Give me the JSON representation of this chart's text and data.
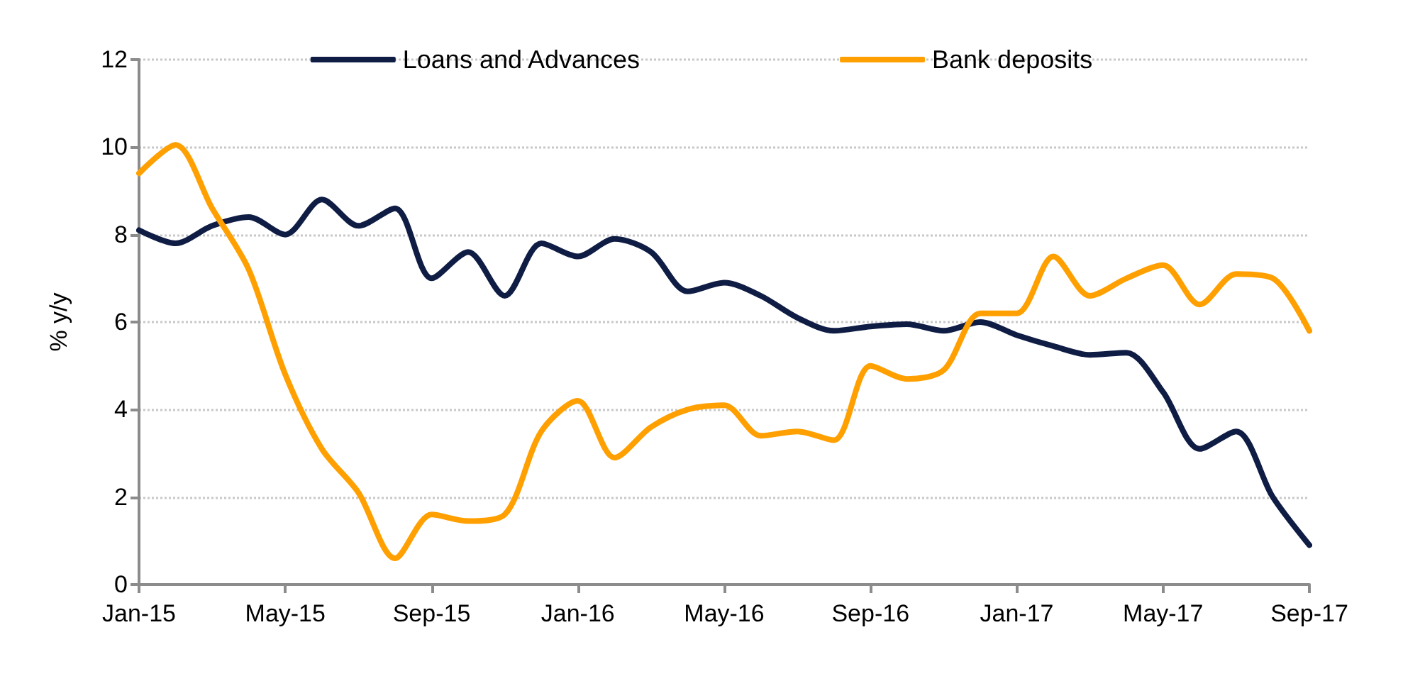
{
  "chart_data": {
    "type": "line",
    "ylabel": "% y/y",
    "categories": [
      "Jan-15",
      null,
      null,
      null,
      "May-15",
      null,
      null,
      null,
      "Sep-15",
      null,
      null,
      null,
      "Jan-16",
      null,
      null,
      null,
      "May-16",
      null,
      null,
      null,
      "Sep-16",
      null,
      null,
      null,
      "Jan-17",
      null,
      null,
      null,
      "May-17",
      null,
      null,
      null,
      "Sep-17"
    ],
    "series": [
      {
        "name": "Loans and Advances",
        "color": "#0f1d45",
        "values": [
          8.1,
          7.8,
          8.2,
          8.4,
          8.0,
          8.8,
          8.2,
          8.6,
          7.0,
          7.6,
          6.6,
          7.8,
          7.5,
          7.9,
          7.6,
          6.7,
          6.9,
          6.6,
          6.1,
          5.8,
          5.9,
          5.95,
          5.8,
          6.0,
          5.7,
          5.45,
          5.25,
          5.3,
          4.4,
          3.1,
          3.5,
          2.0,
          0.9
        ]
      },
      {
        "name": "Bank deposits",
        "color": "#ffa000",
        "values": [
          9.4,
          10.05,
          8.6,
          7.2,
          4.8,
          3.1,
          2.1,
          0.6,
          1.6,
          1.45,
          1.6,
          3.5,
          4.2,
          2.9,
          3.6,
          4.0,
          4.1,
          3.4,
          3.5,
          3.3,
          5.0,
          4.7,
          4.9,
          6.2,
          6.2,
          7.5,
          6.6,
          7.0,
          7.3,
          6.4,
          7.1,
          7.0,
          5.8
        ]
      }
    ],
    "ylim": [
      0,
      12
    ],
    "yticks": [
      0,
      2,
      4,
      6,
      8,
      10,
      12
    ],
    "grid": "y",
    "legend": "top",
    "marker": "none",
    "line_style": "solid"
  }
}
